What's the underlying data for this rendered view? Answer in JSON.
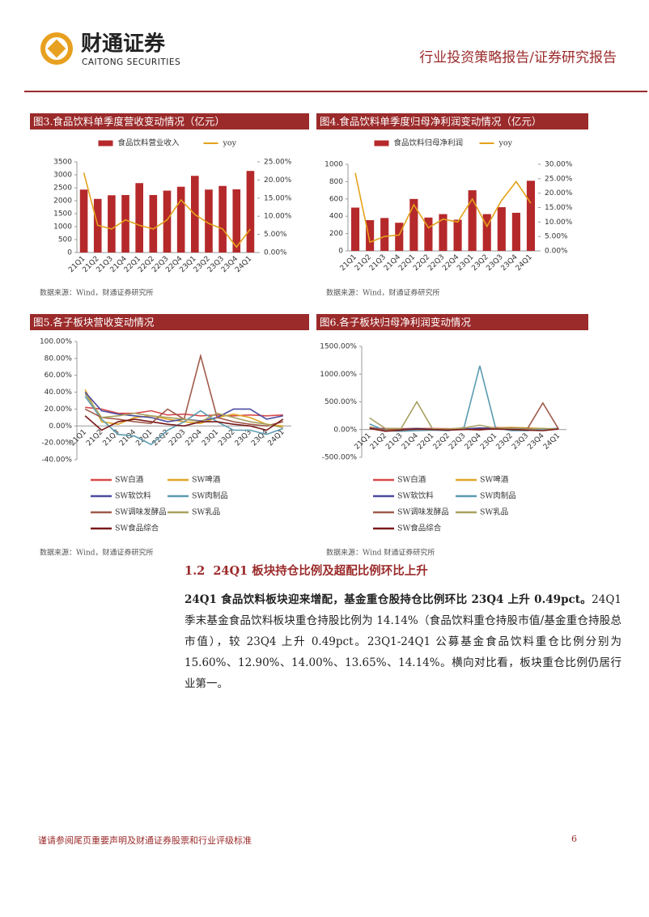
{
  "header": {
    "logo_cn": "财通证券",
    "logo_en": "CAITONG SECURITIES",
    "report_type": "行业投资策略报告/证券研究报告"
  },
  "chart_data": [
    {
      "type": "combo",
      "title": "图3.食品饮料单季度营收变动情况（亿元）",
      "source": "数据来源：Wind，财通证券研究所",
      "legend": "top",
      "categories": [
        "21Q1",
        "21Q2",
        "21Q3",
        "21Q4",
        "22Q1",
        "22Q2",
        "22Q3",
        "22Q4",
        "23Q1",
        "23Q2",
        "23Q3",
        "23Q4",
        "24Q1"
      ],
      "series": [
        {
          "name": "食品饮料营业收入",
          "type": "bar",
          "color": "#b5292b",
          "values": [
            2430,
            2070,
            2210,
            2220,
            2680,
            2220,
            2390,
            2540,
            2960,
            2430,
            2570,
            2440,
            3150
          ]
        },
        {
          "name": "yoy",
          "type": "line",
          "axis": "y2",
          "color": "#e3a21a",
          "values": [
            22,
            7.5,
            6.5,
            9,
            7.5,
            6.5,
            9,
            14.5,
            10.5,
            8,
            6.5,
            1.5,
            6.5
          ]
        }
      ],
      "ylim": [
        0,
        3500
      ],
      "yticks": [
        0,
        500,
        1000,
        1500,
        2000,
        2500,
        3000,
        3500
      ],
      "y2lim": [
        0,
        25
      ],
      "y2ticks": [
        {
          "value": 0,
          "label": "0.00%"
        },
        {
          "value": 5,
          "label": "5.00%"
        },
        {
          "value": 10,
          "label": "10.00%"
        },
        {
          "value": 15,
          "label": "15.00%"
        },
        {
          "value": 20,
          "label": "20.00%"
        },
        {
          "value": 25,
          "label": "25.00%"
        }
      ]
    },
    {
      "type": "combo",
      "title": "图4.食品饮料单季度归母净利润变动情况（亿元）",
      "source": "数据来源：Wind，财通证券研究所",
      "legend": "top",
      "categories": [
        "21Q1",
        "21Q2",
        "21Q3",
        "21Q4",
        "22Q1",
        "22Q2",
        "22Q3",
        "22Q4",
        "23Q1",
        "23Q2",
        "23Q3",
        "23Q4",
        "24Q1"
      ],
      "series": [
        {
          "name": "食品饮料归母净利润",
          "type": "bar",
          "color": "#b5292b",
          "values": [
            500,
            355,
            380,
            325,
            600,
            385,
            425,
            360,
            700,
            425,
            505,
            440,
            810
          ]
        },
        {
          "name": "yoy",
          "type": "line",
          "axis": "y2",
          "color": "#e3a21a",
          "values": [
            27,
            3,
            5,
            5.5,
            16,
            8,
            11,
            10,
            18,
            8.5,
            17.5,
            24,
            16.5
          ]
        }
      ],
      "ylim": [
        0,
        1000
      ],
      "yticks": [
        0,
        200,
        400,
        600,
        800,
        1000
      ],
      "y2lim": [
        0,
        30
      ],
      "y2ticks": [
        {
          "value": 0,
          "label": "0.00%"
        },
        {
          "value": 5,
          "label": "5.00%"
        },
        {
          "value": 10,
          "label": "10.00%"
        },
        {
          "value": 15,
          "label": "15.00%"
        },
        {
          "value": 20,
          "label": "20.00%"
        },
        {
          "value": 25,
          "label": "25.00%"
        },
        {
          "value": 30,
          "label": "30.00%"
        }
      ]
    },
    {
      "type": "line",
      "title": "图5.各子板块营收变动情况",
      "source": "数据来源：Wind，财通证券研究所",
      "legend": "bottom",
      "categories": [
        "21Q1",
        "21Q2",
        "21Q3",
        "21Q4",
        "22Q1",
        "22Q2",
        "22Q3",
        "22Q4",
        "23Q1",
        "23Q2",
        "23Q3",
        "23Q4",
        "24Q1"
      ],
      "series": [
        {
          "name": "SW白酒",
          "color": "#d94a4a",
          "values": [
            22,
            20,
            15,
            15,
            18,
            13,
            14,
            12,
            13,
            12,
            13,
            12,
            13
          ]
        },
        {
          "name": "SW啤酒",
          "color": "#e0a526",
          "values": [
            43,
            5,
            2,
            10,
            12,
            8,
            5,
            3,
            10,
            14,
            10,
            2,
            0
          ]
        },
        {
          "name": "SW软饮料",
          "color": "#4b4ba0",
          "values": [
            40,
            18,
            14,
            12,
            10,
            5,
            8,
            6,
            10,
            20,
            20,
            8,
            12
          ]
        },
        {
          "name": "SW肉制品",
          "color": "#5b9bb0",
          "values": [
            35,
            8,
            -10,
            -12,
            -22,
            -5,
            5,
            18,
            5,
            -5,
            -5,
            -10,
            -3
          ]
        },
        {
          "name": "SW调味发酵品",
          "color": "#a05a4b",
          "values": [
            20,
            10,
            8,
            5,
            3,
            20,
            8,
            83,
            10,
            5,
            2,
            0,
            5
          ]
        },
        {
          "name": "SW乳品",
          "color": "#a8a060",
          "values": [
            38,
            10,
            12,
            15,
            12,
            10,
            8,
            5,
            15,
            10,
            5,
            2,
            -2
          ]
        },
        {
          "name": "SW食品综合",
          "color": "#7a1a1a",
          "values": [
            12,
            -5,
            5,
            8,
            5,
            2,
            0,
            5,
            5,
            2,
            0,
            -5,
            8
          ]
        }
      ],
      "ylim": [
        -40,
        100
      ],
      "yticks": [
        {
          "value": -40,
          "label": "-40.00%"
        },
        {
          "value": -20,
          "label": "-20.00%"
        },
        {
          "value": 0,
          "label": "0.00%"
        },
        {
          "value": 20,
          "label": "20.00%"
        },
        {
          "value": 40,
          "label": "40.00%"
        },
        {
          "value": 60,
          "label": "60.00%"
        },
        {
          "value": 80,
          "label": "80.00%"
        },
        {
          "value": 100,
          "label": "100.00%"
        }
      ]
    },
    {
      "type": "line",
      "title": "图6.各子板块归母净利润变动情况",
      "source": "数据来源：Wind 财通证券研究所",
      "legend": "bottom",
      "categories": [
        "21Q1",
        "21Q2",
        "21Q3",
        "21Q4",
        "22Q1",
        "22Q2",
        "22Q3",
        "22Q4",
        "23Q1",
        "23Q2",
        "23Q3",
        "23Q4",
        "24Q1"
      ],
      "series": [
        {
          "name": "SW白酒",
          "color": "#d94a4a",
          "values": [
            20,
            20,
            15,
            20,
            20,
            15,
            15,
            15,
            40,
            20,
            15,
            12,
            15
          ]
        },
        {
          "name": "SW啤酒",
          "color": "#e0a526",
          "values": [
            50,
            -20,
            10,
            20,
            10,
            5,
            10,
            20,
            30,
            40,
            30,
            20,
            10
          ]
        },
        {
          "name": "SW软饮料",
          "color": "#4b4ba0",
          "values": [
            30,
            10,
            10,
            20,
            5,
            5,
            10,
            30,
            20,
            20,
            15,
            10,
            20
          ]
        },
        {
          "name": "SW肉制品",
          "color": "#5b9bb0",
          "values": [
            100,
            -20,
            -30,
            -20,
            -10,
            -20,
            40,
            1150,
            30,
            -20,
            -20,
            10,
            20
          ]
        },
        {
          "name": "SW调味发酵品",
          "color": "#a05a4b",
          "values": [
            20,
            5,
            10,
            5,
            0,
            10,
            5,
            -10,
            20,
            10,
            5,
            480,
            10
          ]
        },
        {
          "name": "SW乳品",
          "color": "#a8a060",
          "values": [
            210,
            20,
            20,
            500,
            10,
            10,
            30,
            80,
            20,
            10,
            10,
            20,
            10
          ]
        },
        {
          "name": "SW食品综合",
          "color": "#7a1a1a",
          "values": [
            20,
            -30,
            -10,
            10,
            0,
            -10,
            0,
            5,
            10,
            0,
            -10,
            -20,
            10
          ]
        }
      ],
      "ylim": [
        -500,
        1500
      ],
      "yticks": [
        {
          "value": -500,
          "label": "-500.00%"
        },
        {
          "value": 0,
          "label": "0.00%"
        },
        {
          "value": 500,
          "label": "500.00%"
        },
        {
          "value": 1000,
          "label": "1000.00%"
        },
        {
          "value": 1500,
          "label": "1500.00%"
        }
      ]
    }
  ],
  "section": {
    "number": "1.2",
    "title": "24Q1 板块持仓比例及超配比例环比上升"
  },
  "paragraph": {
    "lead": "24Q1 食品饮料板块迎来增配，基金重仓股持仓比例环比 23Q4 上升 0.49pct。",
    "text": "24Q1 季末基金食品饮料板块重仓持股比例为 14.14%（食品饮料重仓持股市值/基金重仓持股总市值），较 23Q4 上升 0.49pct。23Q1-24Q1 公募基金食品饮料重仓比例分别为 15.60%、12.90%、14.00%、13.65%、14.14%。横向对比看，板块重仓比例仍居行业第一。"
  },
  "footer": {
    "disclaimer": "谨请参阅尾页重要声明及财通证券股票和行业评级标准",
    "page": 6
  }
}
